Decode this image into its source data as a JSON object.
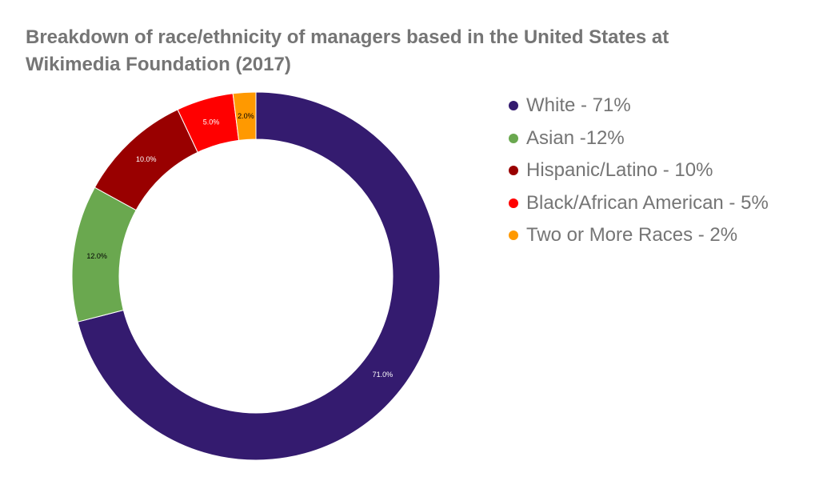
{
  "chart_data": {
    "type": "pie",
    "title_lines": [
      "Breakdown of race/ethnicity of managers based in the United States at",
      "Wikimedia Foundation (2017)"
    ],
    "slices": [
      {
        "legend": "White - 71%",
        "value": 71.0,
        "label": "71.0%",
        "color": "#341b6f",
        "label_color": "#ffffff"
      },
      {
        "legend": "Asian -12%",
        "value": 12.0,
        "label": "12.0%",
        "color": "#6aa84f",
        "label_color": "#000000"
      },
      {
        "legend": "Hispanic/Latino - 10%",
        "value": 10.0,
        "label": "10.0%",
        "color": "#990000",
        "label_color": "#ffffff"
      },
      {
        "legend": "Black/African American - 5%",
        "value": 5.0,
        "label": "5.0%",
        "color": "#ff0000",
        "label_color": "#ffffff"
      },
      {
        "legend": "Two or More Races - 2%",
        "value": 2.0,
        "label": "2.0%",
        "color": "#ff9900",
        "label_color": "#000000"
      }
    ],
    "legend_position": "right"
  }
}
